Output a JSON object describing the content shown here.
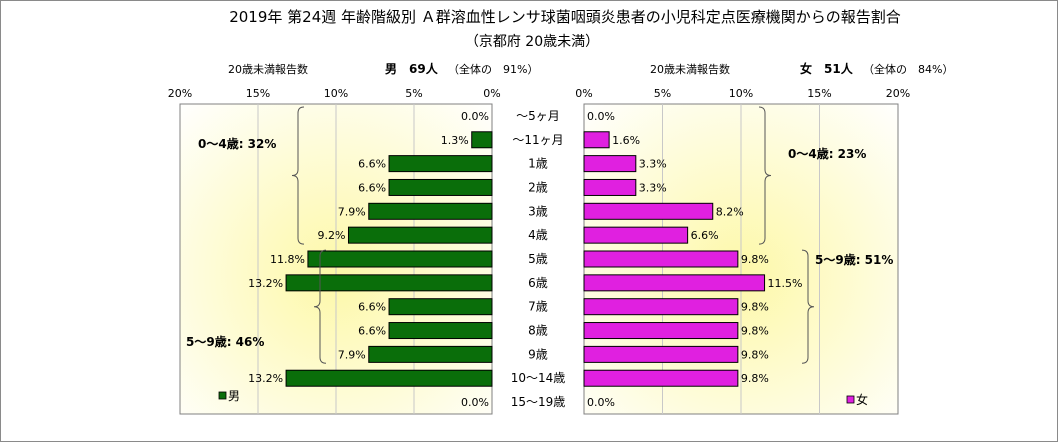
{
  "chart_data": {
    "type": "bar",
    "title": "2019年 第24週 年齢階級別 Ａ群溶血性レンサ球菌咽頭炎患者の小児科定点医療機関からの報告割合",
    "subtitle": "（京都府 20歳未満）",
    "categories": [
      "～5ヶ月",
      "～11ヶ月",
      "1歳",
      "2歳",
      "3歳",
      "4歳",
      "5歳",
      "6歳",
      "7歳",
      "8歳",
      "9歳",
      "10～14歳",
      "15～19歳"
    ],
    "xlim": [
      0,
      20
    ],
    "ticks": [
      "20%",
      "15%",
      "10%",
      "5%",
      "0%"
    ],
    "ticks_right": [
      "0%",
      "5%",
      "10%",
      "15%",
      "20%"
    ],
    "grid": true,
    "series": [
      {
        "name": "男",
        "color": "#0a6e0a",
        "values": [
          0.0,
          1.3,
          6.6,
          6.6,
          7.9,
          9.2,
          11.8,
          13.2,
          6.6,
          6.6,
          7.9,
          13.2,
          0.0
        ],
        "labels": [
          "0.0%",
          "1.3%",
          "6.6%",
          "6.6%",
          "7.9%",
          "9.2%",
          "11.8%",
          "13.2%",
          "6.6%",
          "6.6%",
          "7.9%",
          "13.2%",
          "0.0%"
        ],
        "header_count_label": "20歳未満報告数",
        "header_main": "男　69人",
        "header_share": "（全体の　91%）",
        "group_labels": [
          "0～4歳: 32%",
          "5～9歳: 46%"
        ],
        "legend": "男"
      },
      {
        "name": "女",
        "color": "#e020e0",
        "values": [
          0.0,
          1.6,
          3.3,
          3.3,
          8.2,
          6.6,
          9.8,
          11.5,
          9.8,
          9.8,
          9.8,
          9.8,
          0.0
        ],
        "labels": [
          "0.0%",
          "1.6%",
          "3.3%",
          "3.3%",
          "8.2%",
          "6.6%",
          "9.8%",
          "11.5%",
          "9.8%",
          "9.8%",
          "9.8%",
          "9.8%",
          "0.0%"
        ],
        "header_count_label": "20歳未満報告数",
        "header_main": "女　51人",
        "header_share": "（全体の　84%）",
        "group_labels": [
          "0～4歳: 23%",
          "5～9歳: 51%"
        ],
        "legend": "女"
      }
    ]
  }
}
